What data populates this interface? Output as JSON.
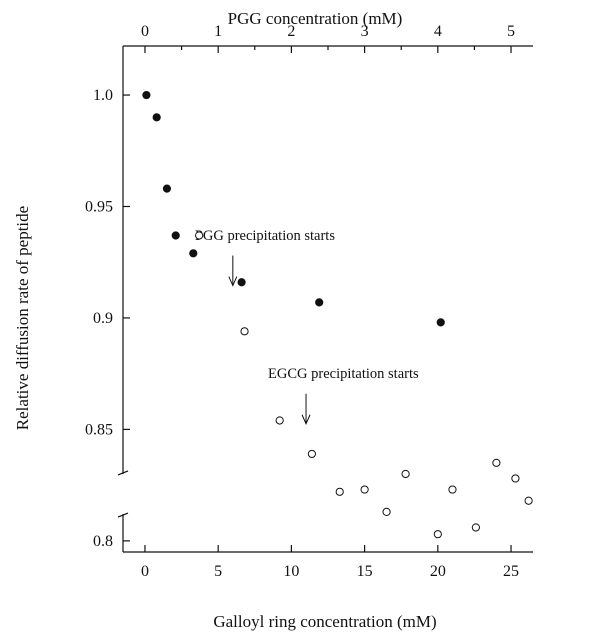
{
  "chart_data": {
    "type": "scatter",
    "xlabel": "Galloyl ring concentration (mM)",
    "x2label": "PGG concentration (mM)",
    "ylabel": "Relative diffusion rate of peptide",
    "xlim": [
      -1.5,
      26.5
    ],
    "x2lim": [
      -0.3,
      5.3
    ],
    "ylim": [
      0.795,
      1.022
    ],
    "x_ticks": [
      0,
      5,
      10,
      15,
      20,
      25
    ],
    "x_tick_labels": [
      "0",
      "5",
      "10",
      "15",
      "20",
      "25"
    ],
    "x2_ticks": [
      0,
      1,
      2,
      3,
      4,
      5
    ],
    "x2_tick_labels": [
      "0",
      "1",
      "2",
      "3",
      "4",
      "5"
    ],
    "y_ticks": [
      0.8,
      0.85,
      0.9,
      0.95,
      1.0
    ],
    "y_tick_labels": [
      "0.8",
      "0.85",
      "0.9",
      "0.95",
      "1.0"
    ],
    "series": [
      {
        "marker": "filled",
        "x": [
          0.1,
          0.8,
          1.5,
          2.1,
          3.3,
          6.6,
          11.9,
          20.2
        ],
        "y": [
          1.0,
          0.99,
          0.958,
          0.937,
          0.929,
          0.916,
          0.907,
          0.898
        ]
      },
      {
        "marker": "open",
        "x": [
          3.7,
          6.8,
          9.2,
          11.4,
          13.3,
          15.0,
          16.5,
          17.8,
          20.0,
          21.0,
          22.6,
          24.0,
          25.3,
          26.2
        ],
        "y": [
          0.937,
          0.894,
          0.854,
          0.839,
          0.822,
          0.823,
          0.813,
          0.83,
          0.803,
          0.823,
          0.806,
          0.835,
          0.828,
          0.818
        ]
      }
    ],
    "annotations": [
      {
        "text": "PGG precipitation starts",
        "x": 6.0,
        "y": 0.92
      },
      {
        "text": "EGCG precipitation starts",
        "x": 11.0,
        "y": 0.85
      }
    ]
  }
}
